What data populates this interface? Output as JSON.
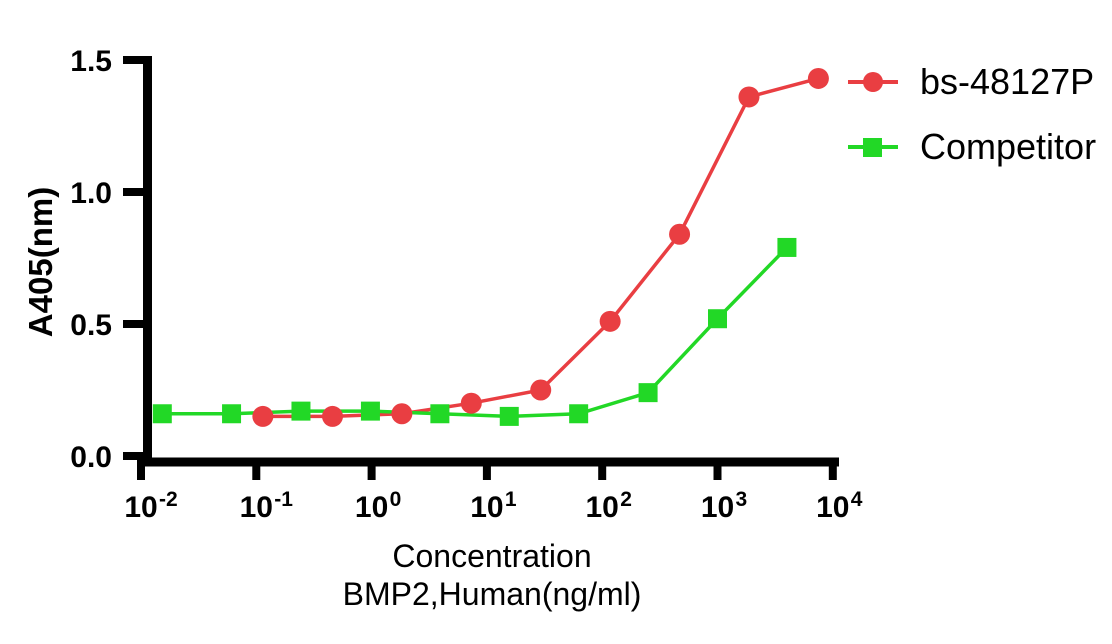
{
  "figure": {
    "background": "#ffffff",
    "axis_color": "#000000",
    "text_color": "#000000"
  },
  "chart_data": {
    "type": "line",
    "x_scale": "log10",
    "x_axis": {
      "label_line1": "Concentration",
      "label_line2": "BMP2,Human(ng/ml)",
      "tick_base": "10",
      "tick_exponents": [
        "-2",
        "-1",
        "0",
        "1",
        "2",
        "3",
        "4"
      ],
      "range_log10": [
        -2,
        4
      ]
    },
    "y_axis": {
      "label": "A405(nm)",
      "ticks": [
        0,
        0.5,
        1,
        1.5
      ],
      "tick_labels": [
        "0.0",
        "0.5",
        "1.0",
        "1.5"
      ],
      "range": [
        0,
        1.5
      ]
    },
    "legend": {
      "position": "top-right"
    },
    "series": [
      {
        "name": "bs-48127P",
        "color": "#e93e42",
        "marker": "circle",
        "x": [
          0.114,
          0.458,
          1.83,
          7.32,
          29.3,
          117.2,
          468.8,
          1875,
          7500
        ],
        "y": [
          0.15,
          0.15,
          0.16,
          0.2,
          0.25,
          0.51,
          0.84,
          1.36,
          1.43
        ]
      },
      {
        "name": "Competitor",
        "color": "#22d826",
        "marker": "square",
        "x": [
          0.0153,
          0.061,
          0.244,
          0.977,
          3.91,
          15.63,
          62.5,
          250,
          1000,
          4000
        ],
        "y": [
          0.16,
          0.16,
          0.17,
          0.17,
          0.16,
          0.15,
          0.16,
          0.24,
          0.52,
          0.79
        ]
      }
    ]
  }
}
